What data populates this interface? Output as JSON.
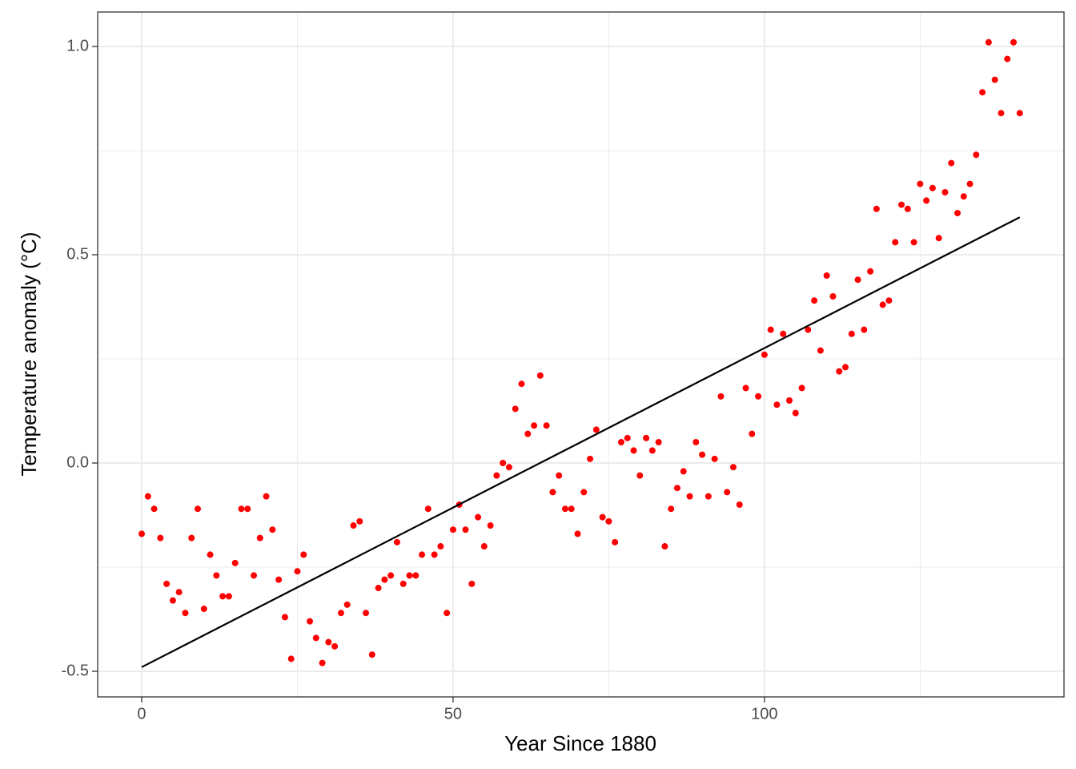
{
  "chart_data": {
    "type": "scatter",
    "x_label": "Year Since 1880",
    "y_label": "Temperature anomaly (°C)",
    "xlim": [
      -7.07,
      148.1
    ],
    "ylim": [
      -0.5615,
      1.0827
    ],
    "xticks": [
      0,
      50,
      100
    ],
    "yticks": [
      -0.5,
      {
        "value": 0,
        "label": "0.0"
      },
      0.5,
      {
        "value": 1,
        "label": "1.0"
      }
    ],
    "minor_xticks": [
      25,
      75,
      125
    ],
    "minor_yticks": [
      -0.25,
      0.25,
      0.75
    ],
    "grid": true,
    "series": [
      {
        "color": "#ff0000",
        "x": [
          0,
          1,
          2,
          3,
          4,
          5,
          6,
          7,
          8,
          9,
          10,
          11,
          12,
          13,
          14,
          15,
          16,
          17,
          18,
          19,
          20,
          21,
          22,
          23,
          24,
          25,
          26,
          27,
          28,
          29,
          30,
          31,
          32,
          33,
          34,
          35,
          36,
          37,
          38,
          39,
          40,
          41,
          42,
          43,
          44,
          45,
          46,
          47,
          48,
          49,
          50,
          51,
          52,
          53,
          54,
          55,
          56,
          57,
          58,
          59,
          60,
          61,
          62,
          63,
          64,
          65,
          66,
          67,
          68,
          69,
          70,
          71,
          72,
          73,
          74,
          75,
          76,
          77,
          78,
          79,
          80,
          81,
          82,
          83,
          84,
          85,
          86,
          87,
          88,
          89,
          90,
          91,
          92,
          93,
          94,
          95,
          96,
          97,
          98,
          99,
          100,
          101,
          102,
          103,
          104,
          105,
          106,
          107,
          108,
          109,
          110,
          111,
          112,
          113,
          114,
          115,
          116,
          117,
          118,
          119,
          120,
          121,
          122,
          123,
          124,
          125,
          126,
          127,
          128,
          129,
          130,
          131,
          132,
          133,
          134,
          135,
          136,
          137,
          138,
          139,
          140,
          141
        ],
        "values": [
          -0.17,
          -0.08,
          -0.11,
          -0.18,
          -0.29,
          -0.33,
          -0.31,
          -0.36,
          -0.18,
          -0.11,
          -0.35,
          -0.22,
          -0.27,
          -0.32,
          -0.32,
          -0.24,
          -0.11,
          -0.11,
          -0.27,
          -0.18,
          -0.08,
          -0.16,
          -0.28,
          -0.37,
          -0.47,
          -0.26,
          -0.22,
          -0.38,
          -0.42,
          -0.48,
          -0.43,
          -0.44,
          -0.36,
          -0.34,
          -0.15,
          -0.14,
          -0.36,
          -0.46,
          -0.3,
          -0.28,
          -0.27,
          -0.19,
          -0.29,
          -0.27,
          -0.27,
          -0.22,
          -0.11,
          -0.22,
          -0.2,
          -0.36,
          -0.16,
          -0.1,
          -0.16,
          -0.29,
          -0.13,
          -0.2,
          -0.15,
          -0.03,
          0.0,
          -0.01,
          0.13,
          0.19,
          0.07,
          0.09,
          0.21,
          0.09,
          -0.07,
          -0.03,
          -0.11,
          -0.11,
          -0.17,
          -0.07,
          0.01,
          0.08,
          -0.13,
          -0.14,
          -0.19,
          0.05,
          0.06,
          0.03,
          -0.03,
          0.06,
          0.03,
          0.05,
          -0.2,
          -0.11,
          -0.06,
          -0.02,
          -0.08,
          0.05,
          0.02,
          -0.08,
          0.01,
          0.16,
          -0.07,
          -0.01,
          -0.1,
          0.18,
          0.07,
          0.16,
          0.26,
          0.32,
          0.14,
          0.31,
          0.15,
          0.12,
          0.18,
          0.32,
          0.39,
          0.27,
          0.45,
          0.4,
          0.22,
          0.23,
          0.31,
          0.44,
          0.32,
          0.46,
          0.61,
          0.38,
          0.39,
          0.53,
          0.62,
          0.61,
          0.53,
          0.67,
          0.63,
          0.66,
          0.54,
          0.65,
          0.72,
          0.6,
          0.64,
          0.67,
          0.74,
          0.89,
          1.01,
          0.92,
          0.84,
          0.97,
          1.01,
          0.84
        ]
      }
    ],
    "trend_line": {
      "color": "#000000",
      "x": [
        0,
        141
      ],
      "values": [
        -0.49,
        0.59
      ]
    }
  }
}
